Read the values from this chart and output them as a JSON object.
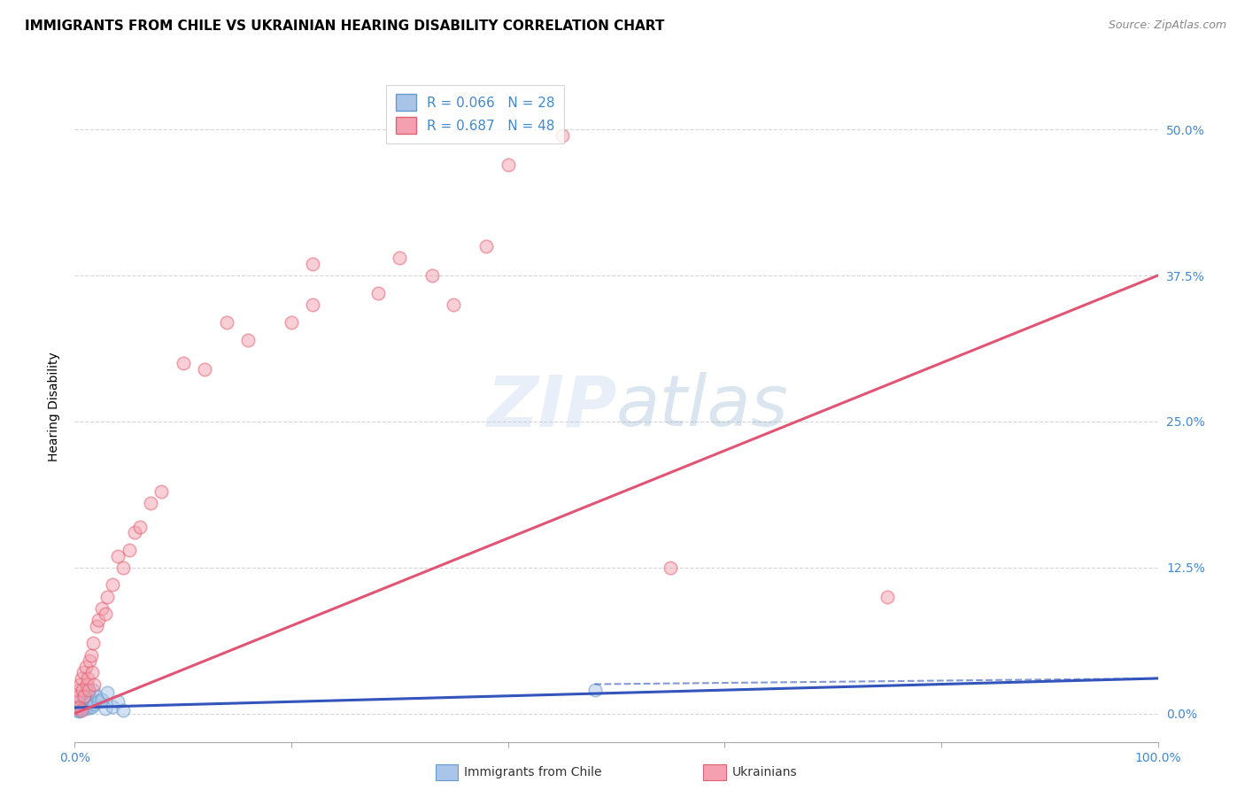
{
  "title": "IMMIGRANTS FROM CHILE VS UKRAINIAN HEARING DISABILITY CORRELATION CHART",
  "source": "Source: ZipAtlas.com",
  "ylabel": "Hearing Disability",
  "ytick_values": [
    0.0,
    12.5,
    25.0,
    37.5,
    50.0
  ],
  "xlim": [
    0.0,
    100.0
  ],
  "ylim": [
    -2.5,
    55.0
  ],
  "watermark": "ZIPatlas",
  "chile_color_face": "#a8c4e8",
  "chile_color_edge": "#6699cc",
  "ukraine_color_face": "#f4a0b0",
  "ukraine_color_edge": "#e06070",
  "chile_line_color": "#3355bb",
  "ukraine_line_color": "#e05575",
  "grid_color": "#cccccc",
  "background_color": "#ffffff",
  "title_fontsize": 11,
  "axis_label_fontsize": 10,
  "tick_fontsize": 10,
  "legend_label_chile": "R = 0.066   N = 28",
  "legend_label_ukraine": "R = 0.687   N = 48",
  "bottom_legend_chile": "Immigrants from Chile",
  "bottom_legend_ukraine": "Ukrainians",
  "chile_scatter_x": [
    0.2,
    0.3,
    0.4,
    0.5,
    0.5,
    0.6,
    0.7,
    0.8,
    0.9,
    1.0,
    1.0,
    1.1,
    1.2,
    1.3,
    1.4,
    1.5,
    1.6,
    1.7,
    1.8,
    2.0,
    2.2,
    2.5,
    2.8,
    3.0,
    3.5,
    4.0,
    4.5,
    48.0
  ],
  "chile_scatter_y": [
    0.3,
    0.5,
    0.2,
    1.0,
    0.3,
    0.8,
    0.4,
    1.5,
    0.6,
    0.4,
    1.2,
    0.7,
    0.9,
    1.8,
    0.5,
    1.0,
    0.6,
    2.0,
    0.8,
    1.5,
    1.0,
    1.2,
    0.4,
    1.8,
    0.6,
    1.0,
    0.3,
    2.0
  ],
  "ukraine_scatter_x": [
    0.2,
    0.3,
    0.4,
    0.5,
    0.6,
    0.7,
    0.8,
    0.9,
    1.0,
    1.1,
    1.2,
    1.3,
    1.4,
    1.5,
    1.6,
    1.7,
    1.8,
    2.0,
    2.2,
    2.5,
    2.8,
    3.0,
    3.5,
    4.0,
    4.5,
    5.0,
    5.5,
    6.0,
    7.0,
    8.0,
    10.0,
    12.0,
    14.0,
    16.0,
    20.0,
    22.0,
    22.0,
    28.0,
    30.0,
    33.0,
    35.0,
    38.0,
    40.0,
    45.0,
    55.0,
    75.0,
    0.4,
    0.6
  ],
  "ukraine_scatter_y": [
    1.0,
    2.0,
    1.5,
    2.5,
    3.0,
    2.0,
    3.5,
    1.5,
    4.0,
    2.5,
    3.0,
    2.0,
    4.5,
    5.0,
    3.5,
    6.0,
    2.5,
    7.5,
    8.0,
    9.0,
    8.5,
    10.0,
    11.0,
    13.5,
    12.5,
    14.0,
    15.5,
    16.0,
    18.0,
    19.0,
    30.0,
    29.5,
    33.5,
    32.0,
    33.5,
    35.0,
    38.5,
    36.0,
    39.0,
    37.5,
    35.0,
    40.0,
    47.0,
    49.5,
    12.5,
    10.0,
    0.5,
    0.3
  ],
  "chile_line_x": [
    0.0,
    100.0
  ],
  "chile_line_y": [
    0.5,
    3.0
  ],
  "chile_line_dash": true,
  "ukraine_line_x": [
    0.0,
    100.0
  ],
  "ukraine_line_y": [
    0.0,
    37.5
  ]
}
